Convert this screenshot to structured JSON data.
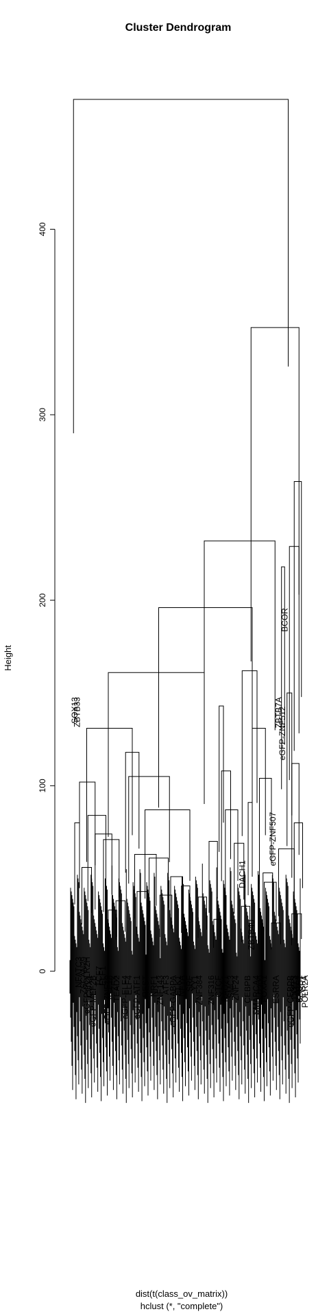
{
  "chart_data": {
    "type": "dendrogram",
    "title": "Cluster Dendrogram",
    "ylabel": "Height",
    "xlabel": "dist(t(class_ov_matrix))",
    "sub": "hclust (*, \"complete\")",
    "ylim": [
      0,
      470
    ],
    "yticks": [
      0,
      100,
      200,
      300,
      400
    ],
    "leaf_labels": [
      {
        "text": "SOX13",
        "at": 0.04,
        "y": 150
      },
      {
        "text": "ZBTB33",
        "at": 0.05,
        "y": 150
      },
      {
        "text": "NFATC3",
        "at": 0.055,
        "y": 10
      },
      {
        "text": "ZSCAN29",
        "at": 0.075,
        "y": 10
      },
      {
        "text": "eGFP-POLR2H",
        "at": 0.09,
        "y": 10
      },
      {
        "text": "CUX1",
        "at": 0.1,
        "y": 0
      },
      {
        "text": "eGFP-MEF2B",
        "at": 0.115,
        "y": 0
      },
      {
        "text": "TCF7",
        "at": 0.14,
        "y": 5
      },
      {
        "text": "ELF1",
        "at": 0.155,
        "y": 5
      },
      {
        "text": "eGFP-ZNF10",
        "at": 0.175,
        "y": 0
      },
      {
        "text": "KLF16",
        "at": 0.185,
        "y": 0
      },
      {
        "text": "ZFX",
        "at": 0.205,
        "y": 0
      },
      {
        "text": "TEAD2",
        "at": 0.215,
        "y": 0
      },
      {
        "text": "eGFP-ELF4",
        "at": 0.25,
        "y": 0
      },
      {
        "text": "ELF4",
        "at": 0.265,
        "y": 0
      },
      {
        "text": "REST",
        "at": 0.335,
        "y": 0
      },
      {
        "text": "eGFP-ATF1",
        "at": 0.3,
        "y": 0
      },
      {
        "text": "NRF1",
        "at": 0.37,
        "y": 0
      },
      {
        "text": "ZNF143",
        "at": 0.395,
        "y": 0
      },
      {
        "text": "ATF3",
        "at": 0.42,
        "y": 0
      },
      {
        "text": "eGFP-GABPA",
        "at": 0.45,
        "y": 0
      },
      {
        "text": "ELK1",
        "at": 0.47,
        "y": 0
      },
      {
        "text": "NFYA",
        "at": 0.485,
        "y": 0
      },
      {
        "text": "SRF",
        "at": 0.52,
        "y": 0
      },
      {
        "text": "YY1",
        "at": 0.54,
        "y": 0
      },
      {
        "text": "ZNF384",
        "at": 0.56,
        "y": 0
      },
      {
        "text": "ZNF316",
        "at": 0.61,
        "y": 0
      },
      {
        "text": "CTCF",
        "at": 0.64,
        "y": 0
      },
      {
        "text": "RAD21",
        "at": 0.665,
        "y": 0
      },
      {
        "text": "SMC3",
        "at": 0.69,
        "y": 0
      },
      {
        "text": "ZNF24",
        "at": 0.71,
        "y": 0
      },
      {
        "text": "DACH1",
        "at": 0.738,
        "y": 62
      },
      {
        "text": "CEBPB",
        "at": 0.76,
        "y": 0
      },
      {
        "text": "ZBTB40",
        "at": 0.775,
        "y": 30
      },
      {
        "text": "SMARCA4",
        "at": 0.795,
        "y": 0
      },
      {
        "text": "EP300",
        "at": 0.815,
        "y": 0
      },
      {
        "text": "FOXA1",
        "at": 0.83,
        "y": 0
      },
      {
        "text": "eGFP-ZNF507",
        "at": 0.866,
        "y": 88
      },
      {
        "text": "ESRRA",
        "at": 0.88,
        "y": 0
      },
      {
        "text": "ZBTB7A",
        "at": 0.89,
        "y": 150
      },
      {
        "text": "eGFP-ZNF512",
        "at": 0.905,
        "y": 145
      },
      {
        "text": "BCOR",
        "at": 0.915,
        "y": 198
      },
      {
        "text": "eGFP-CEBPB",
        "at": 0.94,
        "y": 0
      },
      {
        "text": "DDIT3",
        "at": 0.955,
        "y": 0
      },
      {
        "text": "ATF4",
        "at": 0.965,
        "y": 0
      },
      {
        "text": "BACH1",
        "at": 0.975,
        "y": 0
      },
      {
        "text": "EGR1",
        "at": 0.99,
        "y": 0
      },
      {
        "text": "POLR2A",
        "at": 1.0,
        "y": 0
      }
    ],
    "branches": [
      {
        "h": 470,
        "l": 0.035,
        "r": 0.93
      },
      {
        "h": 347,
        "l": 0.775,
        "r": 0.975
      },
      {
        "h": 264,
        "l": 0.955,
        "r": 0.985
      },
      {
        "h": 232,
        "l": 0.58,
        "r": 0.875
      },
      {
        "h": 229,
        "l": 0.935,
        "r": 0.975
      },
      {
        "h": 218,
        "l": 0.902,
        "r": 0.915
      },
      {
        "h": 196,
        "l": 0.39,
        "r": 0.78
      },
      {
        "h": 161,
        "l": 0.18,
        "r": 0.58
      },
      {
        "h": 162,
        "l": 0.738,
        "r": 0.8
      },
      {
        "h": 150,
        "l": 0.925,
        "r": 0.945
      },
      {
        "h": 143,
        "l": 0.642,
        "r": 0.66
      },
      {
        "h": 131,
        "l": 0.09,
        "r": 0.28
      },
      {
        "h": 131,
        "l": 0.78,
        "r": 0.835
      },
      {
        "h": 118,
        "l": 0.252,
        "r": 0.308
      },
      {
        "h": 112,
        "l": 0.945,
        "r": 0.975
      },
      {
        "h": 108,
        "l": 0.652,
        "r": 0.69
      },
      {
        "h": 105,
        "l": 0.265,
        "r": 0.435
      },
      {
        "h": 104,
        "l": 0.81,
        "r": 0.86
      },
      {
        "h": 102,
        "l": 0.06,
        "r": 0.125
      },
      {
        "h": 91,
        "l": 0.763,
        "r": 0.78
      },
      {
        "h": 87,
        "l": 0.333,
        "r": 0.52
      },
      {
        "h": 87,
        "l": 0.668,
        "r": 0.72
      },
      {
        "h": 84,
        "l": 0.095,
        "r": 0.17
      },
      {
        "h": 80,
        "l": 0.955,
        "r": 0.99
      },
      {
        "h": 80,
        "l": 0.04,
        "r": 0.06
      },
      {
        "h": 74,
        "l": 0.125,
        "r": 0.195
      },
      {
        "h": 71,
        "l": 0.16,
        "r": 0.225
      },
      {
        "h": 70,
        "l": 0.6,
        "r": 0.635
      },
      {
        "h": 69,
        "l": 0.705,
        "r": 0.745
      },
      {
        "h": 66,
        "l": 0.89,
        "r": 0.955
      },
      {
        "h": 63,
        "l": 0.29,
        "r": 0.38
      },
      {
        "h": 61,
        "l": 0.35,
        "r": 0.43
      },
      {
        "h": 56,
        "l": 0.07,
        "r": 0.11
      },
      {
        "h": 53,
        "l": 0.825,
        "r": 0.865
      },
      {
        "h": 51,
        "l": 0.44,
        "r": 0.49
      },
      {
        "h": 48,
        "l": 0.83,
        "r": 0.88
      },
      {
        "h": 46,
        "l": 0.485,
        "r": 0.52
      },
      {
        "h": 43,
        "l": 0.3,
        "r": 0.345
      },
      {
        "h": 41,
        "l": 0.395,
        "r": 0.445
      },
      {
        "h": 40,
        "l": 0.555,
        "r": 0.59
      },
      {
        "h": 38,
        "l": 0.212,
        "r": 0.25
      },
      {
        "h": 35,
        "l": 0.735,
        "r": 0.77
      },
      {
        "h": 33,
        "l": 0.18,
        "r": 0.215
      },
      {
        "h": 31,
        "l": 0.945,
        "r": 0.985
      },
      {
        "h": 28,
        "l": 0.62,
        "r": 0.65
      },
      {
        "h": 26,
        "l": 0.86,
        "r": 0.9
      }
    ]
  }
}
